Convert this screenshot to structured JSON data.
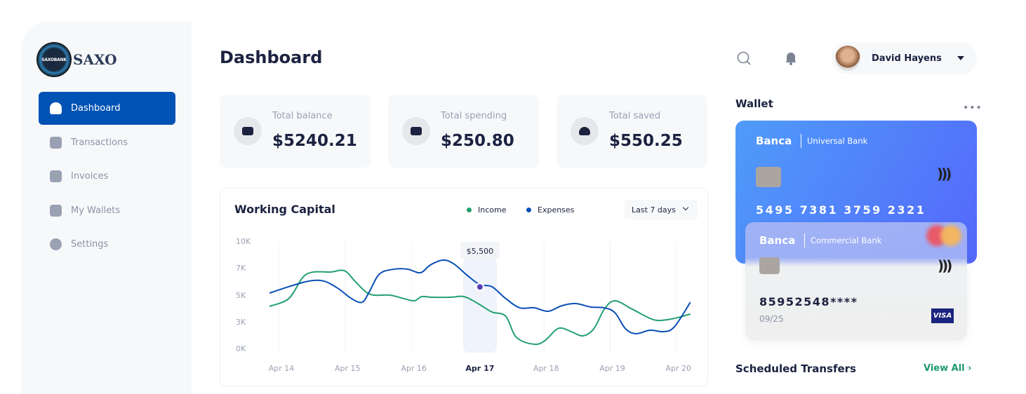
{
  "brand": {
    "name": "SAXO",
    "mark_text": "SAXOBANK"
  },
  "sidebar": {
    "items": [
      {
        "label": "Dashboard",
        "active": true
      },
      {
        "label": "Transactions"
      },
      {
        "label": "Invoices"
      },
      {
        "label": "My Wallets"
      },
      {
        "label": "Settings"
      }
    ]
  },
  "header": {
    "title": "Dashboard",
    "user_name": "David Hayens"
  },
  "stats": [
    {
      "label": "Total balance",
      "value": "$5240.21"
    },
    {
      "label": "Total spending",
      "value": "$250.80"
    },
    {
      "label": "Total saved",
      "value": "$550.25"
    }
  ],
  "chart_data": {
    "type": "line",
    "title": "Working Capital",
    "range_label": "Last 7 days",
    "categories": [
      "Apr 14",
      "Apr 15",
      "Apr 16",
      "Apr 17",
      "Apr 18",
      "Apr 19",
      "Apr 20"
    ],
    "highlight": "Apr 17",
    "yticks": [
      {
        "label": "10K",
        "v": 10
      },
      {
        "label": "7K",
        "v": 7
      },
      {
        "label": "5K",
        "v": 5
      },
      {
        "label": "3K",
        "v": 3
      },
      {
        "label": "0K",
        "v": 0
      }
    ],
    "tooltip": "$5,500",
    "series": [
      {
        "name": "Income",
        "color": "#23a06f",
        "x": [
          -0.18,
          0.11,
          0.32,
          0.48,
          0.74,
          0.95,
          1.11,
          1.27,
          1.4,
          1.64,
          1.85,
          2.01,
          2.12,
          2.28,
          2.55,
          2.76,
          2.97,
          3.18,
          3.39,
          3.55,
          3.82,
          3.98,
          4.14,
          4.24,
          4.4,
          4.56,
          4.72,
          4.88,
          5.04,
          5.3,
          5.62,
          5.83,
          5.99,
          6.18
        ],
        "y": [
          4.16,
          4.74,
          6.28,
          6.69,
          6.69,
          6.79,
          6.03,
          5.26,
          5.0,
          5.0,
          4.74,
          4.58,
          4.89,
          4.84,
          4.84,
          4.89,
          4.37,
          3.74,
          3.42,
          1.26,
          0.47,
          0.87,
          2.05,
          2.29,
          1.82,
          1.42,
          2.21,
          3.95,
          4.58,
          3.95,
          3.16,
          3.16,
          3.32,
          3.58
        ]
      },
      {
        "name": "Expenses",
        "color": "#0a4fb5",
        "x": [
          -0.18,
          0.11,
          0.42,
          0.64,
          0.85,
          1.06,
          1.22,
          1.33,
          1.48,
          1.7,
          1.91,
          2.1,
          2.25,
          2.44,
          2.6,
          2.81,
          3.0,
          3.18,
          3.39,
          3.6,
          3.82,
          4.03,
          4.24,
          4.45,
          4.67,
          4.88,
          5.04,
          5.2,
          5.36,
          5.57,
          5.78,
          5.94,
          6.18
        ],
        "y": [
          5.15,
          5.62,
          6.03,
          6.03,
          5.51,
          4.74,
          4.47,
          5.26,
          6.54,
          6.9,
          6.9,
          6.64,
          7.32,
          7.87,
          7.47,
          6.44,
          5.77,
          5.62,
          4.74,
          4.05,
          4.05,
          3.79,
          4.21,
          4.37,
          4.11,
          4.05,
          3.68,
          2.21,
          1.66,
          2.05,
          1.89,
          2.45,
          4.47
        ]
      }
    ]
  },
  "wallet": {
    "title": "Wallet",
    "more": "•••",
    "cards": [
      {
        "brand": "Banca",
        "bank": "Universal Bank",
        "number": "5495  7381  3759  2321"
      },
      {
        "brand": "Banca",
        "bank": "Commercial Bank",
        "number": "85952548****",
        "expiry": "09/25",
        "network": "VISA"
      }
    ]
  },
  "scheduled": {
    "title": "Scheduled Transfers",
    "view_all": "View All ›"
  },
  "colors": {
    "accent": "#0052b4",
    "income": "#23a06f",
    "expenses": "#0a4fb5",
    "point": "#5b3fb8"
  }
}
